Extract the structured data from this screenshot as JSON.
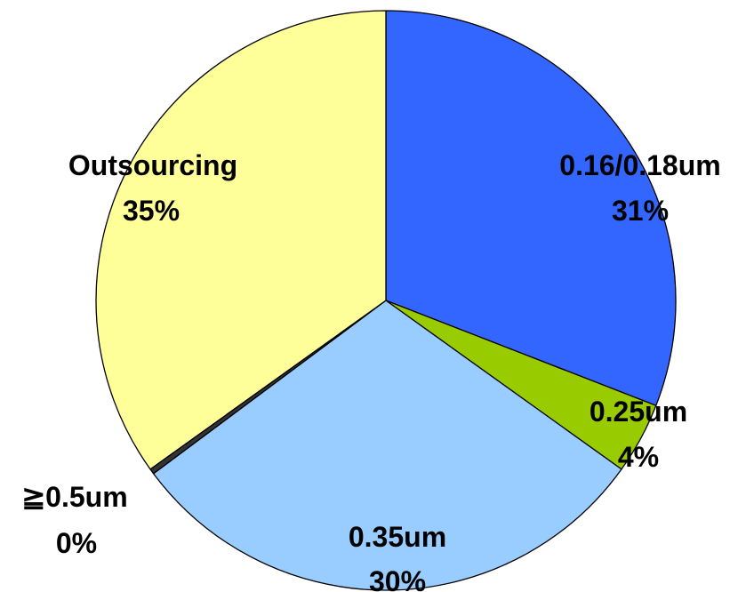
{
  "chart_data": {
    "type": "pie",
    "slices": [
      {
        "label": "0.16/0.18um",
        "value_label": "31%",
        "value": 31,
        "color": "#3366ff"
      },
      {
        "label": "0.25um",
        "value_label": "4%",
        "value": 4,
        "color": "#99cc00"
      },
      {
        "label": "0.35um",
        "value_label": "30%",
        "value": 30,
        "color": "#99ccff"
      },
      {
        "label": "≧0.5um",
        "value_label": "0%",
        "value": 0.3,
        "color": "#333333"
      },
      {
        "label": "Outsourcing",
        "value_label": "35%",
        "value": 35,
        "color": "#ffff99"
      }
    ],
    "start_angle_deg": 0,
    "direction": "clockwise",
    "legend": "none",
    "labels": "category name and percentage next to each slice"
  }
}
